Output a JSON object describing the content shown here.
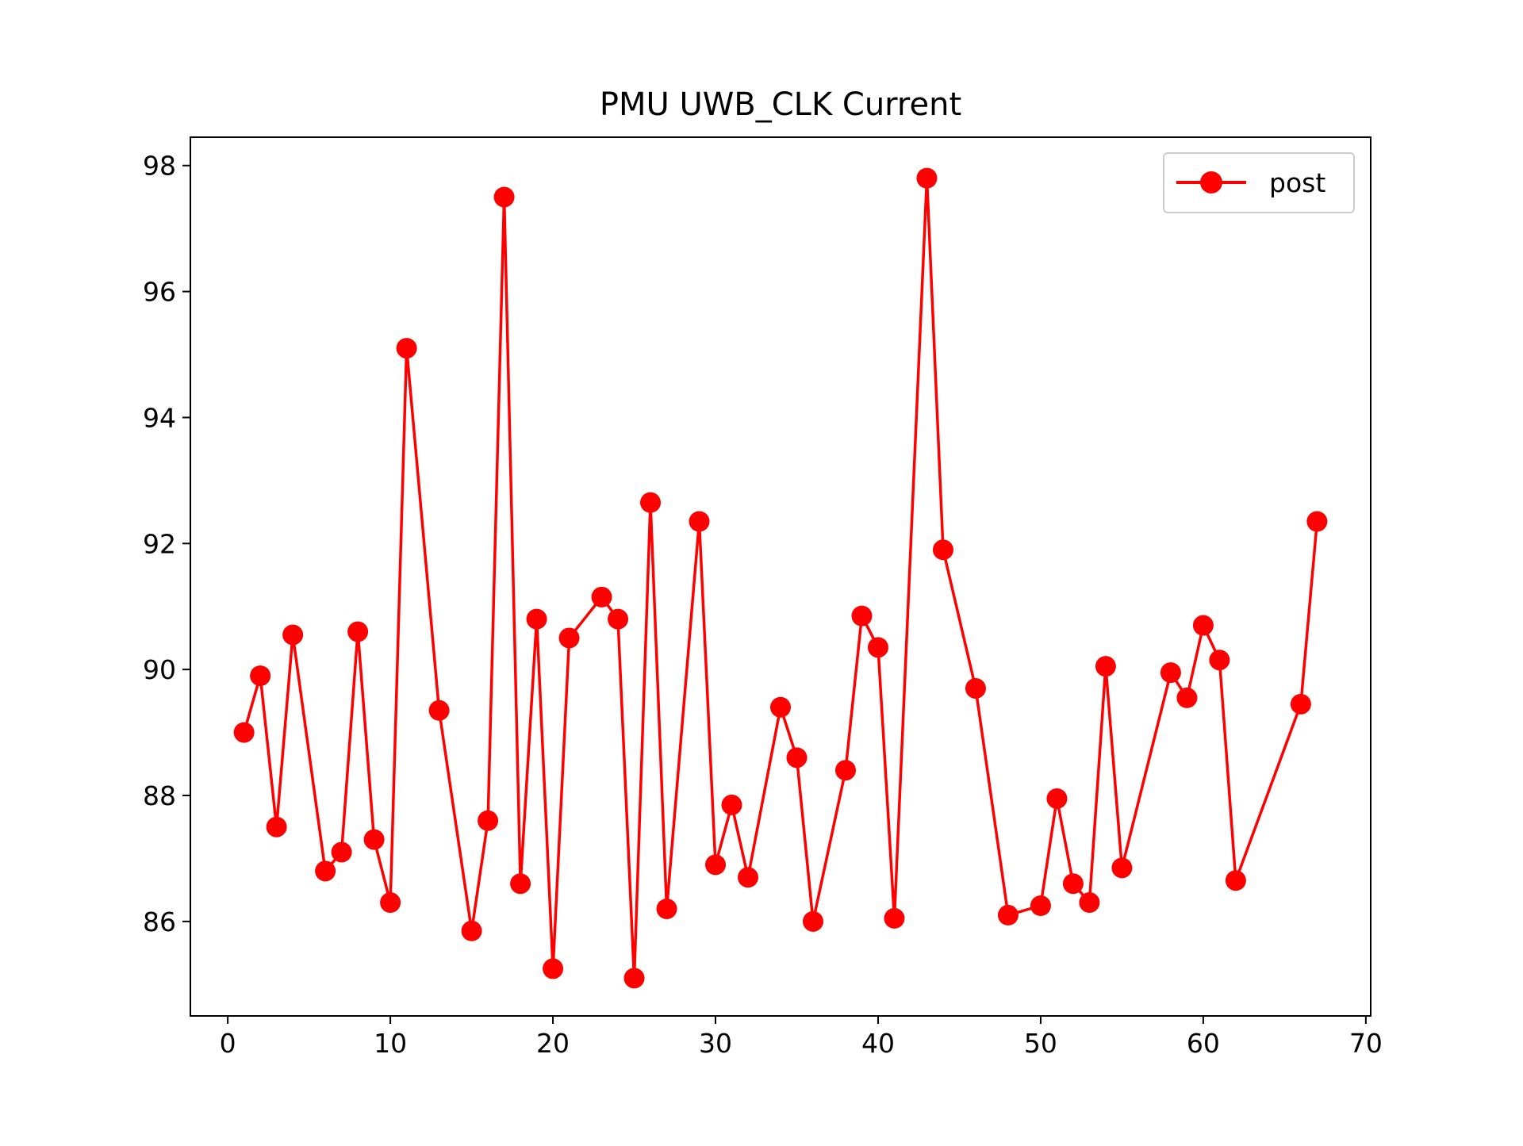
{
  "chart_data": {
    "type": "line",
    "title": "PMU UWB_CLK Current",
    "xlabel": "",
    "ylabel": "",
    "xlim": [
      -2.3,
      70.3
    ],
    "ylim": [
      84.5,
      98.45
    ],
    "xticks": [
      0,
      10,
      20,
      30,
      40,
      50,
      60,
      70
    ],
    "yticks": [
      86,
      88,
      90,
      92,
      94,
      96,
      98
    ],
    "grid": false,
    "legend_position": "top-right",
    "series": [
      {
        "name": "post",
        "color": "#ff0000",
        "marker": "circle",
        "x": [
          1,
          2,
          3,
          4,
          6,
          7,
          8,
          9,
          10,
          11,
          13,
          15,
          16,
          17,
          18,
          19,
          20,
          21,
          23,
          24,
          25,
          26,
          27,
          29,
          30,
          31,
          32,
          34,
          35,
          36,
          38,
          39,
          40,
          41,
          43,
          44,
          46,
          48,
          50,
          51,
          52,
          53,
          54,
          55,
          58,
          59,
          60,
          61,
          62,
          66,
          67
        ],
        "y": [
          89.0,
          89.9,
          87.5,
          90.55,
          86.8,
          87.1,
          90.6,
          87.3,
          86.3,
          95.1,
          89.35,
          85.85,
          87.6,
          97.5,
          86.6,
          90.8,
          85.25,
          90.5,
          91.15,
          90.8,
          85.1,
          92.65,
          86.2,
          92.35,
          86.9,
          87.85,
          86.7,
          89.4,
          88.6,
          86.0,
          88.4,
          90.85,
          90.35,
          86.05,
          97.8,
          91.9,
          89.7,
          86.1,
          86.25,
          87.95,
          86.6,
          86.3,
          90.05,
          86.85,
          89.95,
          89.55,
          90.7,
          90.15,
          86.65,
          89.45,
          92.35
        ]
      }
    ]
  }
}
